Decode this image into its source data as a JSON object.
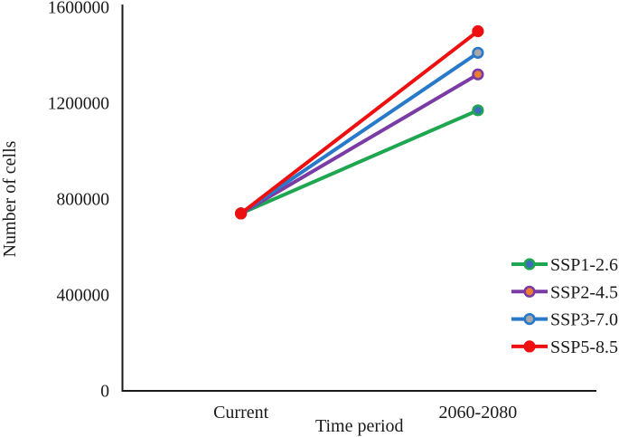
{
  "chart_data": {
    "type": "line",
    "title": "",
    "xlabel": "Time period",
    "ylabel": "Number of cells",
    "categories": [
      "Current",
      "2060-2080"
    ],
    "series": [
      {
        "name": "SSP1-2.6",
        "values": [
          740000,
          1170000
        ],
        "line_color": "#1EA750",
        "marker_fill": "#3F6BBE"
      },
      {
        "name": "SSP2-4.5",
        "values": [
          740000,
          1320000
        ],
        "line_color": "#7B3BA5",
        "marker_fill": "#ED7D31"
      },
      {
        "name": "SSP3-7.0",
        "values": [
          740000,
          1410000
        ],
        "line_color": "#2879C9",
        "marker_fill": "#A8A8A8"
      },
      {
        "name": "SSP5-8.5",
        "values": [
          740000,
          1500000
        ],
        "line_color": "#EE1010",
        "marker_fill": "#EE1010"
      }
    ],
    "ylim": [
      0,
      1600000
    ],
    "yticks": [
      0,
      400000,
      800000,
      1200000,
      1600000
    ],
    "ytick_labels": [
      "0",
      "400000",
      "800000",
      "1200000",
      "1600000"
    ],
    "grid": false,
    "legend_position": "right-lower",
    "legend_entries": [
      "SSP1-2.6",
      "SSP2-4.5",
      "SSP3-7.0",
      "SSP5-8.5"
    ],
    "axis_color": "#1a1a1a"
  }
}
